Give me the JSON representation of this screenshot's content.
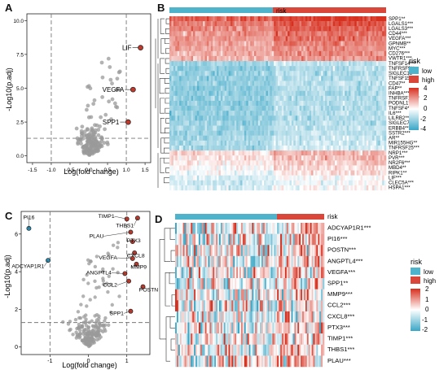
{
  "panels": {
    "A": {
      "letter": "A",
      "ylabel": "-Log10(p.adj)",
      "xlabel": "Log(fold change)",
      "xticks": [
        "-1.5",
        "-1.0",
        "-0.5",
        "0.0",
        "0.5",
        "1.0",
        "1.5"
      ],
      "yticks": [
        "0.0",
        "2.5",
        "5.0",
        "7.5",
        "10.0"
      ],
      "labels": [
        {
          "text": "LIF",
          "x": 1.38,
          "y": 8.0
        },
        {
          "text": "VEGFA",
          "x": 1.18,
          "y": 4.9
        },
        {
          "text": "SPP1",
          "x": 1.05,
          "y": 2.5
        }
      ]
    },
    "B": {
      "letter": "B",
      "annotation_label": "risk",
      "genes": [
        "SPP1**",
        "LGALS1***",
        "LGALS3***",
        "CD44***",
        "VEGFA***",
        "GPNMB**",
        "MYC***",
        "CD276***",
        "VWTR1***",
        "TNFSF14***",
        "TNFRSF9**",
        "SIGLEC15**",
        "TNFSF15***",
        "CD47**",
        "FAP**",
        "INHBA***",
        "TNFRSF18***",
        "PODNL1***",
        "TNFSF4**",
        "IL6***",
        "LILRB2**",
        "SIGLEC7**",
        "ERBB4***",
        "SSTR2***",
        "AR**",
        "MIR155HG**",
        "TNFRSF25***",
        "NRP1***",
        "PVR***",
        "NR2F6***",
        "MBD4**",
        "RIPK1**",
        "LIF***",
        "CLEC5A***",
        "HSPA1***"
      ],
      "legend": {
        "title": "risk",
        "items": [
          "low",
          "high"
        ],
        "scale": [
          "4",
          "2",
          "0",
          "-2",
          "-4"
        ]
      }
    },
    "C": {
      "letter": "C",
      "ylabel": "-Log10(p.adj)",
      "xlabel": "Log(fold change)",
      "xticks": [
        "-1",
        "0",
        "1"
      ],
      "yticks": [
        "0",
        "2",
        "4",
        "6"
      ],
      "labels": [
        "PI16",
        "ADCYAP1R1",
        "TIMP1",
        "THBS1",
        "PLAU",
        "PTX3",
        "CXCL8",
        "VEGFA",
        "ANGPTL4",
        "MMP9",
        "CCL2",
        "POSTN",
        "SPP1"
      ]
    },
    "D": {
      "letter": "D",
      "annotation_label": "risk",
      "genes": [
        "ADCYAP1R1***",
        "PI16***",
        "POSTN***",
        "ANGPTL4***",
        "VEGFA***",
        "SPP1**",
        "MMP9***",
        "CCL2***",
        "CXCL8***",
        "PTX3***",
        "TIMP1***",
        "THBS1***",
        "PLAU***"
      ],
      "legend": {
        "title": "risk",
        "items": [
          "low",
          "high"
        ],
        "scale": [
          "2",
          "1",
          "0",
          "-1",
          "-2"
        ]
      }
    }
  },
  "colors": {
    "low": "#4fb3cc",
    "high": "#d9473a",
    "red": "#c0392b",
    "blue": "#2a8fb5",
    "gray": "#9a9a9a"
  }
}
